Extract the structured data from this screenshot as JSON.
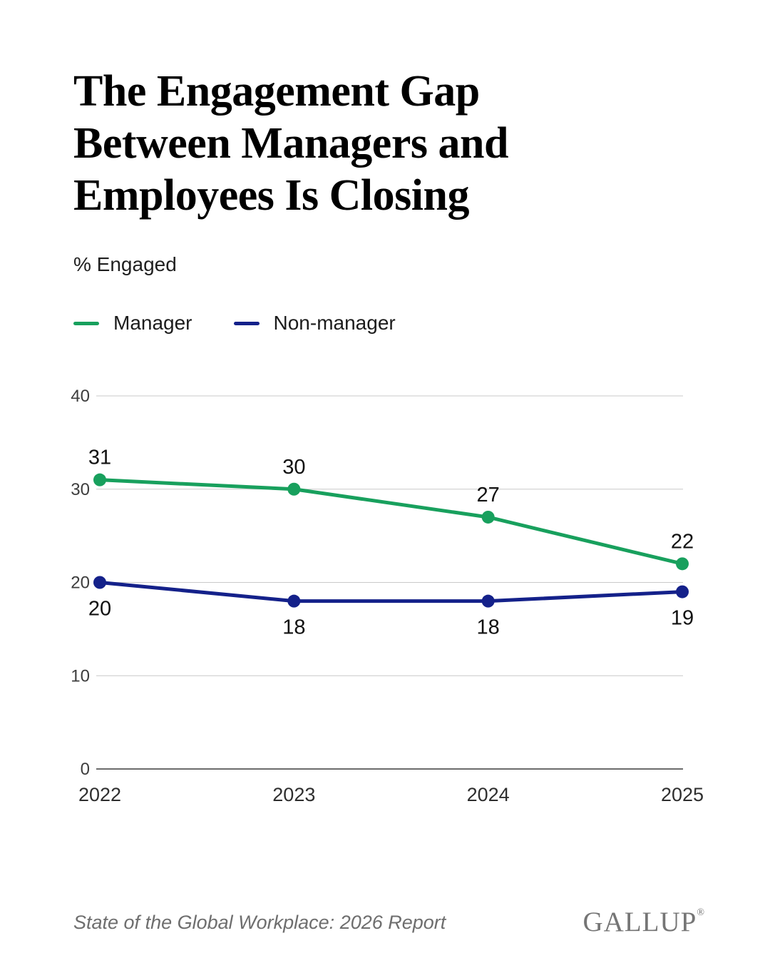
{
  "title": {
    "lines": [
      "The Engagement Gap",
      "Between Managers and",
      "Employees Is Closing"
    ]
  },
  "subtitle": "% Engaged",
  "footer": {
    "source": "State of the Global Workplace: 2026 Report",
    "brand": "GALLUP",
    "registered": "®"
  },
  "chart_data": {
    "type": "line",
    "x": [
      "2022",
      "2023",
      "2024",
      "2025"
    ],
    "series": [
      {
        "name": "Manager",
        "color": "#18A05D",
        "values": [
          31,
          30,
          27,
          22
        ],
        "label_position": "above"
      },
      {
        "name": "Non-manager",
        "color": "#14218A",
        "values": [
          20,
          18,
          18,
          19
        ],
        "label_position": "below"
      }
    ],
    "y_ticks": [
      0,
      10,
      20,
      30,
      40
    ],
    "ylim": [
      0,
      40
    ],
    "grid": true,
    "legend_position": "top-left",
    "colors": {
      "grid_line": "#c9c9c9",
      "axis_line": "#3c3c3c",
      "tick_label": "#3d3d3d",
      "x_label": "#2e2e2e",
      "data_label": "#111111"
    }
  }
}
